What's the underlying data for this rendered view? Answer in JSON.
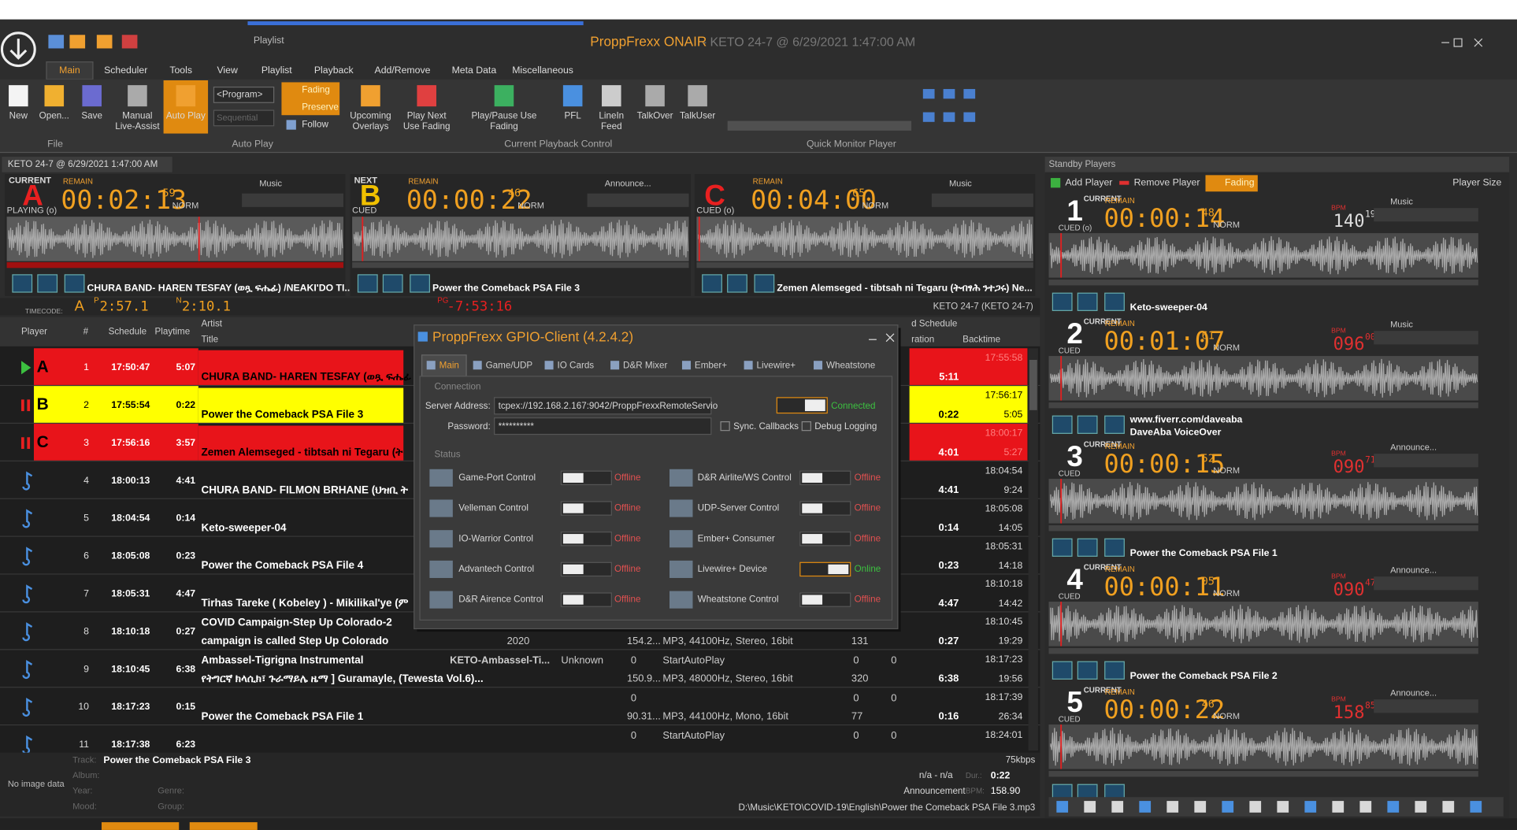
{
  "title_bar": {
    "context_tab": "Playlist",
    "app": "ProppFrexx ONAIR",
    "info": "- KETO 24-7 @ 6/29/2021 1:47:00 AM"
  },
  "ribbon": {
    "tabs": [
      "Main",
      "Scheduler",
      "Tools",
      "View",
      "Playlist",
      "Playback",
      "Add/Remove",
      "Meta Data",
      "Miscellaneous"
    ],
    "buttons": [
      "New",
      "Open...",
      "Save",
      "Manual Live-Assist",
      "Auto Play",
      "Upcoming Overlays",
      "Play Next Use Fading",
      "Play/Pause Use Fading",
      "PFL",
      "LineIn Feed",
      "TalkOver",
      "TalkUser"
    ],
    "program": "<Program>",
    "sequential": "Sequential",
    "options": [
      "Fading",
      "Preserve",
      "Follow"
    ],
    "groups": [
      "File",
      "Auto Play",
      "Current Playback Control",
      "Quick Monitor Player"
    ]
  },
  "document_tab": "KETO 24-7 @ 6/29/2021 1:47:00 AM",
  "decks": [
    {
      "label": "CURRENT",
      "letter": "A",
      "state": "PLAYING (o)",
      "remain_label": "REMAIN",
      "remain": "00:02:13",
      "frac": "59",
      "mode": "NORM",
      "type": "Music",
      "title": "CHURA BAND- HAREN TESFAY (ወጿ ፍሔፊ) /NEAKI'DO TI..."
    },
    {
      "label": "NEXT",
      "letter": "B",
      "state": "CUED",
      "remain_label": "REMAIN",
      "remain": "00:00:22",
      "frac": "46",
      "mode": "NORM",
      "type": "Announce...",
      "title": "Power the Comeback PSA File 3"
    },
    {
      "label": "",
      "letter": "C",
      "state": "CUED (o)",
      "remain_label": "REMAIN",
      "remain": "00:04:00",
      "frac": "65",
      "mode": "NORM",
      "type": "Music",
      "title": "Zemen Alemseged - tibtsah ni Tegaru (ትብፃሕ ንተጋሩ) Ne..."
    }
  ],
  "timecode": {
    "label": "TIMECODE:",
    "player": "A",
    "p_label": "P",
    "p_value": "2:57.1",
    "n_label": "N",
    "n_value": "2:10.1",
    "pg_label": "PG",
    "pg_value": "-7:53:16",
    "station": "KETO 24-7 (KETO 24-7)"
  },
  "playlist": {
    "headers": [
      "Player",
      "#",
      "Schedule",
      "Playtime",
      "Artist",
      "Title",
      "d Schedule",
      "ration",
      "Backtime"
    ],
    "rows": [
      {
        "player": "A",
        "number": "1",
        "schedule": "17:50:47",
        "playtime": "5:07",
        "title": "CHURA BAND- HAREN TESFAY (ወጿ ፍሔፊ",
        "end_time": "17:55:58",
        "duration": "5:11"
      },
      {
        "player": "B",
        "number": "2",
        "schedule": "17:55:54",
        "playtime": "0:22",
        "title": "Power the Comeback PSA File 3",
        "end_time": "17:56:17",
        "duration": "0:22",
        "backtime": "5:05"
      },
      {
        "player": "C",
        "number": "3",
        "schedule": "17:56:16",
        "playtime": "3:57",
        "title": "Zemen Alemseged - tibtsah ni Tegaru (ት",
        "end_time": "18:00:17",
        "duration": "4:01",
        "backtime": "5:27"
      },
      {
        "number": "4",
        "schedule": "18:00:13",
        "playtime": "4:41",
        "title": "CHURA BAND- FILMON BRHANE (ህዝቢ ት",
        "end_time": "18:04:54",
        "duration": "4:41",
        "backtime": "9:24"
      },
      {
        "number": "5",
        "schedule": "18:04:54",
        "playtime": "0:14",
        "title": "Keto-sweeper-04",
        "end_time": "18:05:08",
        "duration": "0:14",
        "backtime": "14:05"
      },
      {
        "number": "6",
        "schedule": "18:05:08",
        "playtime": "0:23",
        "title": "Power the Comeback PSA File 4",
        "end_time": "18:05:31",
        "duration": "0:23",
        "backtime": "14:18"
      },
      {
        "number": "7",
        "schedule": "18:05:31",
        "playtime": "4:47",
        "title": "Tirhas Tareke ( Kobeley ) - Mikilikal'ye (ም",
        "end_time": "18:10:18",
        "duration": "4:47",
        "backtime": "14:42"
      },
      {
        "number": "8",
        "schedule": "18:10:18",
        "playtime": "0:27",
        "title": "COVID Campaign-Step Up Colorado-2",
        "title2": "campaign is called Step Up Colorado",
        "end_time": "18:10:45",
        "duration": "0:27",
        "backtime": "19:29",
        "line2": {
          "year": "2020",
          "size": "154.2...",
          "format": "MP3, 44100Hz, Stereo, 16bit",
          "bitrate": "131"
        }
      },
      {
        "number": "9",
        "schedule": "18:10:45",
        "playtime": "6:38",
        "title": "Ambassel-Tigrigna Instrumental",
        "title2": "የትግርኛ ክላሲክ፣ ጉራማይሌ ዜማ ] Guramayle, (Tewesta Vol.6)...",
        "end_time": "18:17:23",
        "duration": "6:38",
        "backtime": "19:56",
        "line1": {
          "album": "KETO-Ambassel-Ti...",
          "genre": "Unknown",
          "cue": "0",
          "action": "StartAutoPlay",
          "fade_in": "0",
          "fade_out": "0"
        },
        "line2": {
          "size": "150.9...",
          "format": "MP3, 48000Hz, Stereo, 16bit",
          "bitrate": "320"
        }
      },
      {
        "number": "10",
        "schedule": "18:17:23",
        "playtime": "0:15",
        "title": "Power the Comeback PSA File 1",
        "end_time": "18:17:39",
        "duration": "0:16",
        "backtime": "26:34",
        "line1": {
          "cue": "0",
          "fade_in": "0",
          "fade_out": "0"
        },
        "line2": {
          "size": "90.31...",
          "format": "MP3, 44100Hz, Mono, 16bit",
          "bitrate": "77"
        }
      },
      {
        "number": "11",
        "schedule": "18:17:38",
        "playtime": "6:23",
        "end_time": "18:24:01",
        "line1": {
          "cue": "0",
          "action": "StartAutoPlay",
          "fade_in": "0",
          "fade_out": "0"
        }
      }
    ]
  },
  "info": {
    "no_image": "No image data",
    "track_label": "Track:",
    "track": "Power the Comeback PSA File 3",
    "album_label": "Album:",
    "year_label": "Year:",
    "genre_label": "Genre:",
    "mood_label": "Mood:",
    "group_label": "Group:",
    "bitrate": "75kbps",
    "artist": "n/a - n/a",
    "dur_label": "Dur.:",
    "duration": "0:22",
    "category": "Announcement",
    "bpm_label": "BPM:",
    "bpm": "158.90",
    "path": "D:\\Music\\KETO\\COVID-19\\English\\Power the Comeback PSA File 3.mp3"
  },
  "standby": {
    "title": "Standby Players",
    "add": "Add Player",
    "remove": "Remove Player",
    "fading": "Fading",
    "size": "Player Size",
    "players": [
      {
        "number": "1",
        "label": "CURRENT",
        "state": "CUED (o)",
        "remain_label": "REMAIN",
        "remain": "00:00:14",
        "frac": "48",
        "mode": "NORM",
        "bpm_label": "BPM",
        "bpm": "140",
        "bpm_frac": "19",
        "type": "Music",
        "title": "Keto-sweeper-04"
      },
      {
        "number": "2",
        "label": "CURRENT",
        "state": "CUED",
        "remain_label": "REMAIN",
        "remain": "00:01:07",
        "frac": "61",
        "mode": "NORM",
        "bpm_label": "BPM",
        "bpm": "096",
        "bpm_frac": "00",
        "type": "Music",
        "title": "www.fiverr.com/daveaba",
        "title2": "DaveAba VoiceOver"
      },
      {
        "number": "3",
        "label": "CURRENT",
        "state": "CUED",
        "remain_label": "REMAIN",
        "remain": "00:00:15",
        "frac": "52",
        "mode": "NORM",
        "bpm_label": "BPM",
        "bpm": "090",
        "bpm_frac": "71",
        "type": "Announce...",
        "title": "Power the Comeback PSA File 1"
      },
      {
        "number": "4",
        "label": "CURRENT",
        "state": "CUED",
        "remain_label": "REMAIN",
        "remain": "00:00:11",
        "frac": "05",
        "mode": "NORM",
        "bpm_label": "BPM",
        "bpm": "090",
        "bpm_frac": "47",
        "type": "Announce...",
        "title": "Power the Comeback PSA File 2"
      },
      {
        "number": "5",
        "label": "CURRENT",
        "state": "CUED",
        "remain_label": "REMAIN",
        "remain": "00:00:22",
        "frac": "46",
        "mode": "NORM",
        "bpm_label": "BPM",
        "bpm": "158",
        "bpm_frac": "85",
        "type": "Announce..."
      }
    ]
  },
  "dialog": {
    "title": "ProppFrexx GPIO-Client (4.2.4.2)",
    "tabs": [
      "Main",
      "Game/UDP",
      "IO Cards",
      "D&R Mixer",
      "Ember+",
      "Livewire+",
      "Wheatstone"
    ],
    "connection": "Connection",
    "server_label": "Server Address:",
    "server": "tcpex://192.168.2.167:9042/ProppFrexxRemoteServio",
    "connected": "Connected",
    "password_label": "Password:",
    "password": "**********",
    "sync": "Sync. Callbacks",
    "debug": "Debug Logging",
    "status": "Status",
    "controls": [
      {
        "name": "Game-Port Control",
        "state": "Offline"
      },
      {
        "name": "D&R Airlite/WS Control",
        "state": "Offline"
      },
      {
        "name": "Velleman Control",
        "state": "Offline"
      },
      {
        "name": "UDP-Server Control",
        "state": "Offline"
      },
      {
        "name": "IO-Warrior Control",
        "state": "Offline"
      },
      {
        "name": "Ember+ Consumer",
        "state": "Offline"
      },
      {
        "name": "Advantech Control",
        "state": "Offline"
      },
      {
        "name": "Livewire+ Device",
        "state": "Online"
      },
      {
        "name": "D&R Airence Control",
        "state": "Offline"
      },
      {
        "name": "Wheatstone Control",
        "state": "Offline"
      }
    ]
  }
}
